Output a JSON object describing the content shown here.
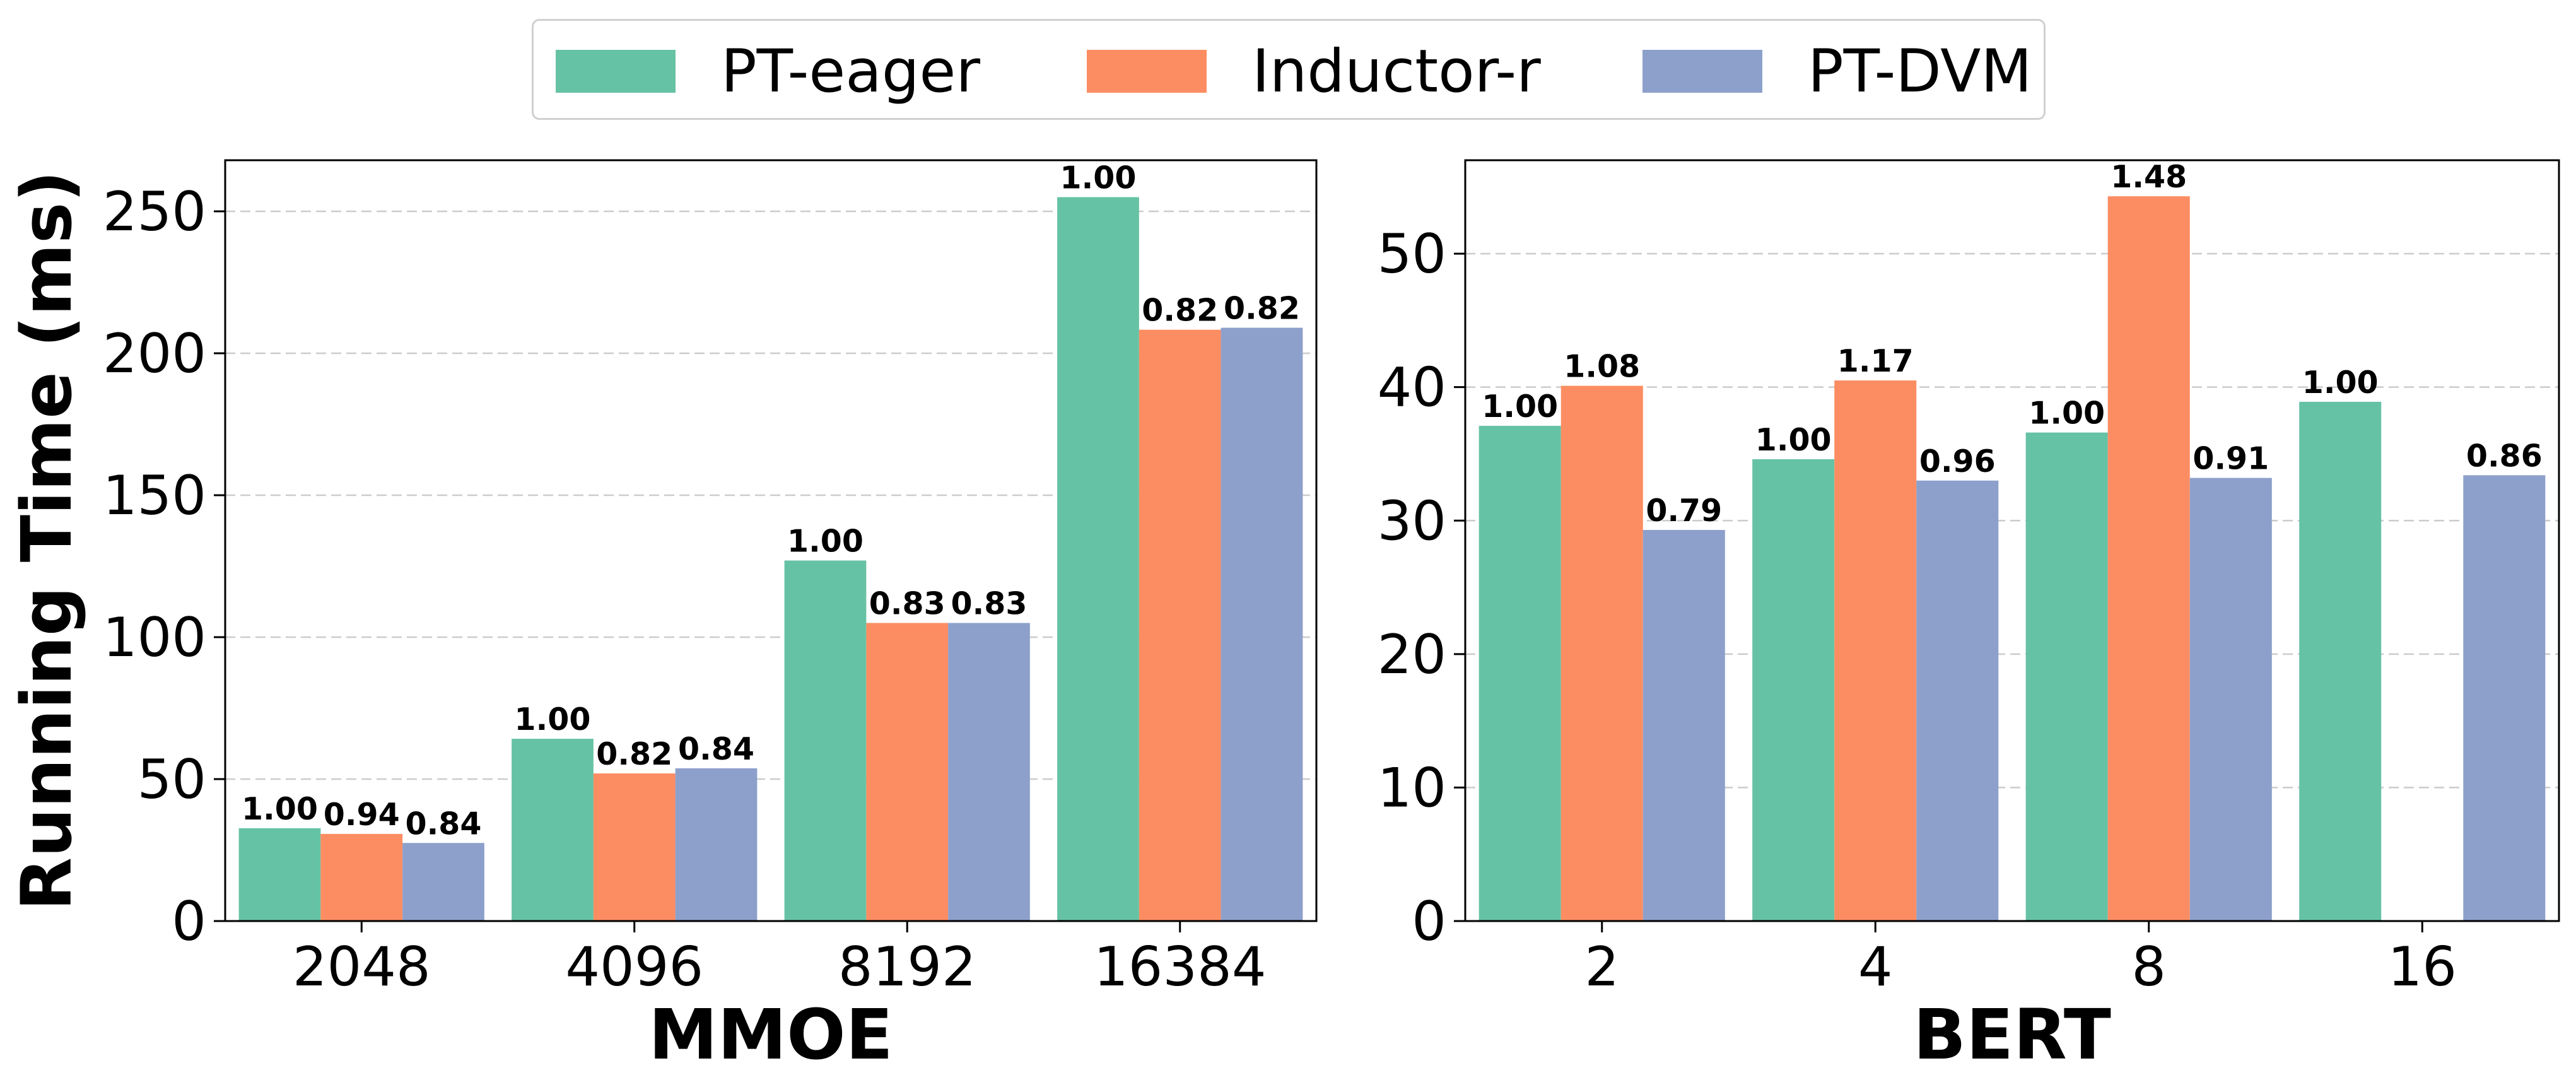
{
  "legend": {
    "items": [
      {
        "label": "PT-eager",
        "color": "#66c2a5"
      },
      {
        "label": "Inductor-r",
        "color": "#fc8d62"
      },
      {
        "label": "PT-DVM",
        "color": "#8da0cb"
      }
    ]
  },
  "chart_data": [
    {
      "type": "bar",
      "xlabel": "MMOE",
      "ylabel": "Running Time (ms)",
      "categories": [
        "2048",
        "4096",
        "8192",
        "16384"
      ],
      "ylim": [
        0,
        268
      ],
      "yticks": [
        "0",
        "50",
        "100",
        "150",
        "200",
        "250"
      ],
      "grid": "horizontal-dashed",
      "series": [
        {
          "name": "PT-eager",
          "color": "#66c2a5",
          "values": [
            32.7,
            64.2,
            127.0,
            255.0
          ],
          "labels": [
            "1.00",
            "1.00",
            "1.00",
            "1.00"
          ]
        },
        {
          "name": "Inductor-r",
          "color": "#fc8d62",
          "values": [
            30.7,
            52.0,
            105.0,
            208.3
          ],
          "labels": [
            "0.94",
            "0.82",
            "0.83",
            "0.82"
          ]
        },
        {
          "name": "PT-DVM",
          "color": "#8da0cb",
          "values": [
            27.5,
            53.8,
            105.0,
            209.0
          ],
          "labels": [
            "0.84",
            "0.84",
            "0.83",
            "0.82"
          ]
        }
      ]
    },
    {
      "type": "bar",
      "xlabel": "BERT",
      "ylabel": "",
      "categories": [
        "2",
        "4",
        "8",
        "16"
      ],
      "ylim": [
        0,
        57
      ],
      "yticks": [
        "0",
        "10",
        "20",
        "30",
        "40",
        "50"
      ],
      "grid": "horizontal-dashed",
      "series": [
        {
          "name": "PT-eager",
          "color": "#66c2a5",
          "values": [
            37.1,
            34.6,
            36.6,
            38.9
          ],
          "labels": [
            "1.00",
            "1.00",
            "1.00",
            "1.00"
          ]
        },
        {
          "name": "Inductor-r",
          "color": "#fc8d62",
          "values": [
            40.1,
            40.5,
            54.3,
            null
          ],
          "labels": [
            "1.08",
            "1.17",
            "1.48",
            ""
          ]
        },
        {
          "name": "PT-DVM",
          "color": "#8da0cb",
          "values": [
            29.3,
            33.0,
            33.2,
            33.4
          ],
          "labels": [
            "0.79",
            "0.96",
            "0.91",
            "0.86"
          ]
        }
      ]
    }
  ]
}
